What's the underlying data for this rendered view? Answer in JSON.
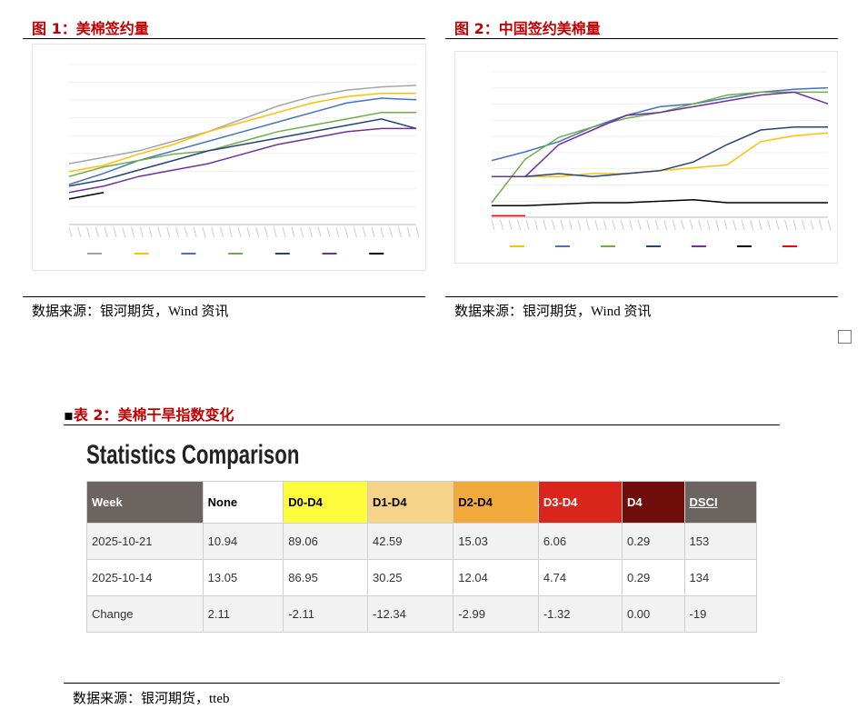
{
  "figures": [
    {
      "caption": "图 1：美棉签约量",
      "source": "数据来源：银河期货，Wind 资讯",
      "chart_data": {
        "type": "line",
        "ylim": [
          0,
          100
        ],
        "series": [
          {
            "color": "#a5a5a5",
            "values": [
              38,
              42,
              46,
              52,
              58,
              66,
              74,
              80,
              84,
              86,
              87
            ]
          },
          {
            "color": "#ffc000",
            "values": [
              33,
              37,
              44,
              50,
              58,
              64,
              70,
              76,
              80,
              82,
              82
            ]
          },
          {
            "color": "#4472c4",
            "values": [
              25,
              32,
              40,
              46,
              52,
              58,
              64,
              70,
              76,
              79,
              78
            ]
          },
          {
            "color": "#70ad47",
            "values": [
              30,
              36,
              40,
              44,
              46,
              52,
              58,
              62,
              66,
              70,
              70
            ]
          },
          {
            "color": "#264478",
            "values": [
              24,
              28,
              34,
              40,
              46,
              50,
              54,
              58,
              62,
              66,
              60
            ]
          },
          {
            "color": "#7030a0",
            "values": [
              20,
              24,
              30,
              34,
              38,
              44,
              50,
              54,
              58,
              60,
              60
            ]
          },
          {
            "color": "#000000",
            "values": [
              16,
              20,
              null,
              null,
              null,
              null,
              null,
              null,
              null,
              null,
              null
            ]
          }
        ]
      }
    },
    {
      "caption": "图 2：中国签约美棉量",
      "source": "数据来源：银河期货，Wind 资讯",
      "chart_data": {
        "type": "line",
        "ylim": [
          0,
          100
        ],
        "series": [
          {
            "color": "#ffc000",
            "values": [
              28,
              28,
              28,
              30,
              30,
              32,
              34,
              36,
              52,
              56,
              58
            ]
          },
          {
            "color": "#4472c4",
            "values": [
              39,
              45,
              52,
              62,
              70,
              76,
              78,
              82,
              86,
              88,
              89
            ]
          },
          {
            "color": "#70ad47",
            "values": [
              10,
              40,
              55,
              62,
              68,
              72,
              78,
              84,
              86,
              86,
              86
            ]
          },
          {
            "color": "#264478",
            "values": [
              28,
              28,
              30,
              28,
              30,
              32,
              38,
              50,
              60,
              62,
              62
            ]
          },
          {
            "color": "#7030a0",
            "values": [
              28,
              28,
              50,
              60,
              70,
              72,
              76,
              80,
              84,
              86,
              78
            ]
          },
          {
            "color": "#000000",
            "values": [
              8,
              8,
              9,
              10,
              10,
              11,
              12,
              10,
              10,
              10,
              10
            ]
          },
          {
            "color": "#ff0000",
            "values": [
              1,
              1,
              null,
              null,
              null,
              null,
              null,
              null,
              null,
              null,
              null
            ]
          }
        ]
      }
    }
  ],
  "table": {
    "caption": "表 2：美棉干旱指数变化",
    "title": "Statistics Comparison",
    "header": [
      "Week",
      "None",
      "D0-D4",
      "D1-D4",
      "D2-D4",
      "D3-D4",
      "D4",
      "DSCI"
    ],
    "rows": [
      [
        "2025-10-21",
        "10.94",
        "89.06",
        "42.59",
        "15.03",
        "6.06",
        "0.29",
        "153"
      ],
      [
        "2025-10-14",
        "13.05",
        "86.95",
        "30.25",
        "12.04",
        "4.74",
        "0.29",
        "134"
      ],
      [
        "Change",
        "2.11",
        "-2.11",
        "-12.34",
        "-2.99",
        "-1.32",
        "0.00",
        "-19"
      ]
    ],
    "source": "数据来源：银河期货，tteb"
  }
}
